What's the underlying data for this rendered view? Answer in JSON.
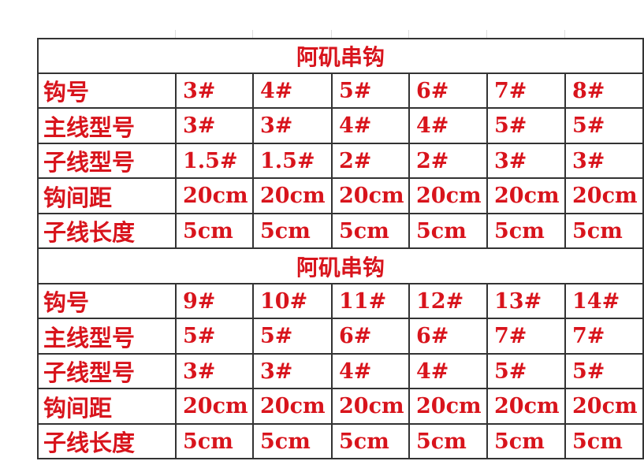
{
  "sections": [
    {
      "title": "阿矶串钩",
      "rows": [
        {
          "label": "钩号",
          "values": [
            "3#",
            "4#",
            "5#",
            "6#",
            "7#",
            "8#"
          ]
        },
        {
          "label": "主线型号",
          "values": [
            "3#",
            "3#",
            "4#",
            "4#",
            "5#",
            "5#"
          ]
        },
        {
          "label": "子线型号",
          "values": [
            "1.5#",
            "1.5#",
            "2#",
            "2#",
            "3#",
            "3#"
          ]
        },
        {
          "label": "钩间距",
          "values": [
            "20cm",
            "20cm",
            "20cm",
            "20cm",
            "20cm",
            "20cm"
          ]
        },
        {
          "label": "子线长度",
          "values": [
            "5cm",
            "5cm",
            "5cm",
            "5cm",
            "5cm",
            "5cm"
          ]
        }
      ]
    },
    {
      "title": "阿矶串钩",
      "rows": [
        {
          "label": "钩号",
          "values": [
            "9#",
            "10#",
            "11#",
            "12#",
            "13#",
            "14#"
          ]
        },
        {
          "label": "主线型号",
          "values": [
            "5#",
            "5#",
            "6#",
            "6#",
            "7#",
            "7#"
          ]
        },
        {
          "label": "子线型号",
          "values": [
            "3#",
            "3#",
            "4#",
            "4#",
            "5#",
            "5#"
          ]
        },
        {
          "label": "钩间距",
          "values": [
            "20cm",
            "20cm",
            "20cm",
            "20cm",
            "20cm",
            "20cm"
          ]
        },
        {
          "label": "子线长度",
          "values": [
            "5cm",
            "5cm",
            "5cm",
            "5cm",
            "5cm",
            "5cm"
          ]
        }
      ]
    }
  ],
  "colors": {
    "text": "#d8141c",
    "border": "#333333"
  }
}
